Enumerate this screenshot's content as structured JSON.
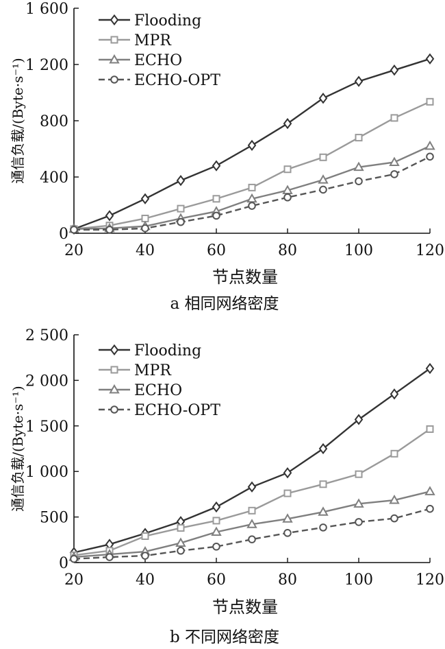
{
  "chart_data": [
    {
      "type": "line",
      "caption": "a 相同网络密度",
      "xlabel": "节点数量",
      "ylabel": "通信负载/(Byte·s⁻¹)",
      "xlim": [
        20,
        120
      ],
      "ylim": [
        0,
        1600
      ],
      "x_ticks": [
        20,
        40,
        60,
        80,
        100,
        120
      ],
      "x_tick_labels": [
        "20",
        "40",
        "60",
        "80",
        "100",
        "120"
      ],
      "y_ticks": [
        0,
        400,
        800,
        1200,
        1600
      ],
      "y_tick_labels": [
        "0",
        "400",
        "800",
        "1 200",
        "1 600"
      ],
      "legend_position": "top-left",
      "grid": false,
      "x": [
        20,
        30,
        40,
        50,
        60,
        70,
        80,
        90,
        100,
        110,
        120
      ],
      "series": [
        {
          "name": "Flooding",
          "color": "#333333",
          "marker": "diamond",
          "dash": false,
          "values": [
            30,
            125,
            245,
            375,
            480,
            625,
            780,
            960,
            1080,
            1160,
            1240
          ]
        },
        {
          "name": "MPR",
          "color": "#9a9a9a",
          "marker": "square",
          "dash": false,
          "values": [
            30,
            55,
            105,
            175,
            245,
            325,
            455,
            540,
            680,
            820,
            935
          ]
        },
        {
          "name": "ECHO",
          "color": "#7f7f7f",
          "marker": "triangle",
          "dash": false,
          "values": [
            30,
            35,
            50,
            105,
            155,
            245,
            305,
            380,
            470,
            505,
            620
          ]
        },
        {
          "name": "ECHO-OPT",
          "color": "#555555",
          "marker": "circle",
          "dash": true,
          "values": [
            25,
            25,
            35,
            80,
            125,
            195,
            255,
            310,
            370,
            420,
            545
          ]
        }
      ]
    },
    {
      "type": "line",
      "caption": "b 不同网络密度",
      "xlabel": "节点数量",
      "ylabel": "通信负载/(Byte·s⁻¹)",
      "xlim": [
        20,
        120
      ],
      "ylim": [
        0,
        2500
      ],
      "x_ticks": [
        20,
        40,
        60,
        80,
        100,
        120
      ],
      "x_tick_labels": [
        "20",
        "40",
        "60",
        "80",
        "100",
        "120"
      ],
      "y_ticks": [
        0,
        500,
        1000,
        1500,
        2000,
        2500
      ],
      "y_tick_labels": [
        "0",
        "500",
        "1 000",
        "1 500",
        "2 000",
        "2 500"
      ],
      "legend_position": "top-left",
      "grid": false,
      "x": [
        20,
        30,
        40,
        50,
        60,
        70,
        80,
        90,
        100,
        110,
        120
      ],
      "series": [
        {
          "name": "Flooding",
          "color": "#333333",
          "marker": "diamond",
          "dash": false,
          "values": [
            110,
            200,
            320,
            450,
            610,
            830,
            985,
            1250,
            1570,
            1850,
            2130
          ]
        },
        {
          "name": "MPR",
          "color": "#9a9a9a",
          "marker": "square",
          "dash": false,
          "values": [
            80,
            130,
            290,
            380,
            460,
            570,
            760,
            860,
            970,
            1195,
            1465
          ]
        },
        {
          "name": "ECHO",
          "color": "#7f7f7f",
          "marker": "triangle",
          "dash": false,
          "values": [
            60,
            90,
            120,
            215,
            335,
            420,
            480,
            555,
            645,
            685,
            780
          ]
        },
        {
          "name": "ECHO-OPT",
          "color": "#555555",
          "marker": "circle",
          "dash": true,
          "values": [
            40,
            60,
            75,
            130,
            175,
            255,
            325,
            385,
            445,
            485,
            590
          ]
        }
      ]
    }
  ]
}
